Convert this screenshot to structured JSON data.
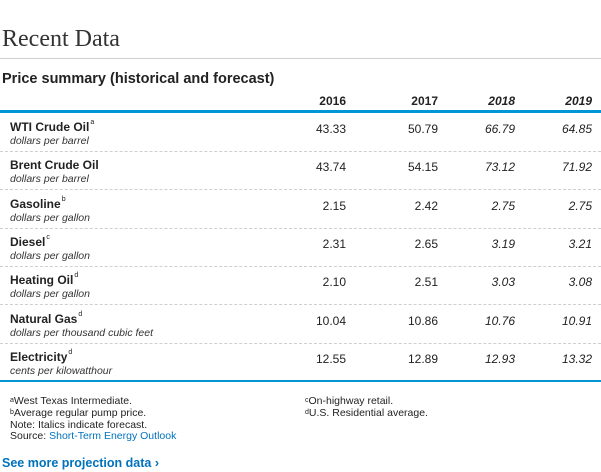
{
  "section_title": "Recent Data",
  "table_title": "Price summary (historical and forecast)",
  "years": [
    {
      "label": "2016",
      "forecast": false
    },
    {
      "label": "2017",
      "forecast": false
    },
    {
      "label": "2018",
      "forecast": true
    },
    {
      "label": "2019",
      "forecast": true
    }
  ],
  "rows": [
    {
      "name": "WTI Crude Oil",
      "sup": "a",
      "unit": "dollars per barrel",
      "values": [
        "43.33",
        "50.79",
        "66.79",
        "64.85"
      ]
    },
    {
      "name": "Brent Crude Oil",
      "sup": "",
      "unit": "dollars per barrel",
      "values": [
        "43.74",
        "54.15",
        "73.12",
        "71.92"
      ]
    },
    {
      "name": "Gasoline",
      "sup": "b",
      "unit": "dollars per gallon",
      "values": [
        "2.15",
        "2.42",
        "2.75",
        "2.75"
      ]
    },
    {
      "name": "Diesel",
      "sup": "c",
      "unit": "dollars per gallon",
      "values": [
        "2.31",
        "2.65",
        "3.19",
        "3.21"
      ]
    },
    {
      "name": "Heating Oil",
      "sup": "d",
      "unit": "dollars per gallon",
      "values": [
        "2.10",
        "2.51",
        "3.03",
        "3.08"
      ]
    },
    {
      "name": "Natural Gas",
      "sup": "d",
      "unit": "dollars per thousand cubic feet",
      "values": [
        "10.04",
        "10.86",
        "10.76",
        "10.91"
      ]
    },
    {
      "name": "Electricity",
      "sup": "d",
      "unit": "cents per kilowatthour",
      "values": [
        "12.55",
        "12.89",
        "12.93",
        "13.32"
      ]
    }
  ],
  "notes": {
    "a_sup": "a",
    "a_text": "West Texas Intermediate.",
    "b_sup": "b",
    "b_text": "Average regular pump price.",
    "italics_note": "Note: Italics indicate forecast.",
    "source_label": "Source: ",
    "source_link": "Short-Term Energy Outlook",
    "c_sup": "c",
    "c_text": "On-highway retail.",
    "d_sup": "d",
    "d_text": "U.S. Residential average."
  },
  "more_link": "See more projection data ›"
}
